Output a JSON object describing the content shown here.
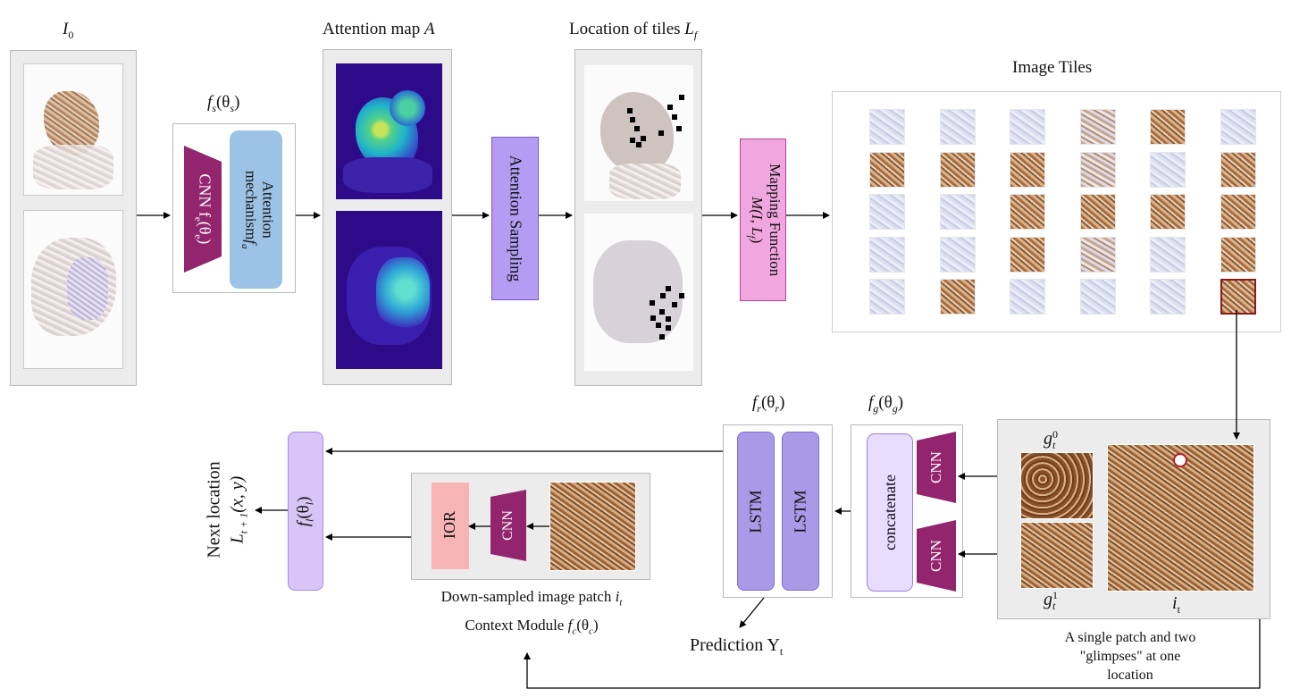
{
  "labels": {
    "i0": "I",
    "i0_sub": "0",
    "fs": "f",
    "fs_sub": "s",
    "fs_arg": "(θ",
    "fs_arg_sub": "s",
    "attention_map": "Attention map ",
    "attention_map_var": "A",
    "loc_tiles": "Location of tiles ",
    "loc_tiles_var": "L",
    "loc_tiles_sub": "f",
    "image_tiles": "Image Tiles",
    "fr": "f",
    "fr_sub": "r",
    "fr_arg": "(θ",
    "fr_arg_sub": "r",
    "fg": "f",
    "fg_sub": "g",
    "fg_arg": "(θ",
    "fg_arg_sub": "g",
    "gt0": "g",
    "gt0_sub": "t",
    "gt0_sup": "0",
    "gt1": "g",
    "gt1_sub": "t",
    "gt1_sup": "1",
    "it": "i",
    "it_sub": "t",
    "patch_caption_1": "A single patch and two",
    "patch_caption_2": "\"glimpses\" at one",
    "patch_caption_3": "location",
    "prediction": "Prediction Y",
    "prediction_sub": "t",
    "downsampled": "Down-sampled image patch ",
    "downsampled_var": "i",
    "downsampled_sub": "t",
    "context_module": "Context Module ",
    "context_var": "f",
    "context_sub": "c",
    "context_arg": "(θ",
    "context_arg_sub": "c",
    "next_location": "Next location",
    "next_loc_var": "L",
    "next_loc_sub": "t + 1",
    "next_loc_arg": "(x, y)",
    "fl": "f",
    "fl_sub": "l",
    "fl_arg": "(θ",
    "fl_arg_sub": "l"
  },
  "blocks": {
    "cnn_fe": "CNN f",
    "cnn_fe_sub": "e",
    "cnn_fe_arg": "(θ",
    "cnn_fe_arg_sub": "e",
    "attention_mech_1": "Attention",
    "attention_mech_2": "mechanism ",
    "attention_mech_var": "f",
    "attention_mech_sub": "a",
    "attention_sampling": "Attention Sampling",
    "mapping_1": "Mapping Function",
    "mapping_2": "M(I, L",
    "mapping_2_sub": "f",
    "concatenate": "concatenate",
    "cnn": "CNN",
    "lstm": "LSTM",
    "ior": "IOR"
  },
  "image_tiles_grid": [
    [
      "blue",
      "blue",
      "blue",
      "mixed",
      "brown",
      "blue"
    ],
    [
      "brown",
      "brown",
      "brown",
      "mixed",
      "blue",
      "brown"
    ],
    [
      "blue",
      "blue",
      "brown",
      "brown",
      "brown",
      "brown"
    ],
    [
      "blue",
      "blue",
      "brown",
      "mixed",
      "blue",
      "brown"
    ],
    [
      "blue",
      "brown",
      "blue",
      "blue",
      "blue",
      "brown"
    ]
  ],
  "selected_tile": {
    "row": 4,
    "col": 5
  },
  "colors": {
    "cnn_purple": "#93256f",
    "attention_blue": "#9cc2e5",
    "sampling_violet": "#b49cf2",
    "mapping_pink": "#f0a6de",
    "lstm_violet": "#a89ae6",
    "concat_lavender": "#e8dcff",
    "fl_lavender": "#d9c4f7",
    "ior_pink": "#f7b4b4",
    "selected_red": "#8b1a1a"
  }
}
